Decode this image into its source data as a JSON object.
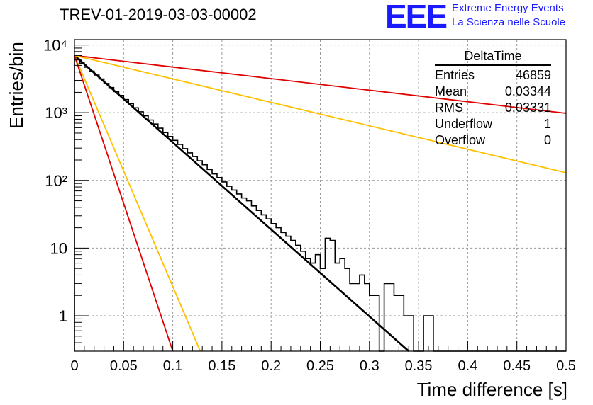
{
  "title": "TREV-01-2019-03-03-00002",
  "logo": {
    "mark": "EEE",
    "line1": "Extreme Energy Events",
    "line2": "La Scienza nelle Scuole",
    "color": "#1a1aff"
  },
  "stats": {
    "name": "DeltaTime",
    "rows": [
      {
        "label": "Entries",
        "value": "46859"
      },
      {
        "label": "Mean",
        "value": "0.03344"
      },
      {
        "label": "RMS",
        "value": "0.03331"
      },
      {
        "label": "Underflow",
        "value": "1"
      },
      {
        "label": "Overflow",
        "value": "0"
      }
    ]
  },
  "chart_data": {
    "type": "line",
    "title": "TREV-01-2019-03-03-00002",
    "xlabel": "Time difference [s]",
    "ylabel": "Entries/bin",
    "xlim": [
      0,
      0.5
    ],
    "ylim": [
      0.3,
      12000
    ],
    "yscale": "log",
    "grid": true,
    "x_ticks": [
      "0",
      "0.05",
      "0.1",
      "0.15",
      "0.2",
      "0.25",
      "0.3",
      "0.35",
      "0.4",
      "0.45",
      "0.5"
    ],
    "y_ticks": [
      {
        "value": 1,
        "label": "1"
      },
      {
        "value": 10,
        "label": "10"
      },
      {
        "value": 100,
        "label": "10²"
      },
      {
        "value": 1000,
        "label": "10³"
      },
      {
        "value": 10000,
        "label": "10⁴"
      }
    ],
    "histogram": {
      "bin_width": 0.005,
      "color": "#000000",
      "values": [
        6200,
        5400,
        4700,
        4100,
        3600,
        3150,
        2700,
        2350,
        2050,
        1800,
        1560,
        1360,
        1180,
        1030,
        900,
        780,
        680,
        590,
        510,
        445,
        390,
        340,
        295,
        255,
        225,
        195,
        170,
        145,
        125,
        110,
        95,
        82,
        72,
        63,
        55,
        50,
        42,
        36,
        31,
        27,
        23,
        20,
        17,
        15,
        13,
        11,
        9,
        7,
        6,
        8,
        5,
        14,
        13,
        6,
        7,
        5,
        3,
        3,
        4,
        3,
        2,
        2,
        0,
        3,
        3,
        2,
        2,
        1,
        1,
        0,
        0,
        1,
        1,
        0,
        0,
        0,
        0,
        0,
        0,
        0,
        0,
        0,
        0,
        0,
        0,
        0,
        0,
        0,
        0,
        0,
        0,
        0,
        0,
        0,
        0,
        0,
        0,
        0,
        0,
        0
      ]
    },
    "series": [
      {
        "color": "#000000",
        "x": [
          0,
          0.34
        ],
        "y": [
          7000,
          0.3
        ]
      },
      {
        "color": "#e00000",
        "x": [
          0,
          0.5
        ],
        "y": [
          7000,
          980
        ]
      },
      {
        "color": "#ffc000",
        "x": [
          0,
          0.5
        ],
        "y": [
          7000,
          130
        ]
      },
      {
        "color": "#ffc000",
        "x": [
          0,
          0.128
        ],
        "y": [
          7000,
          0.3
        ]
      },
      {
        "color": "#e00000",
        "x": [
          0,
          0.1
        ],
        "y": [
          7000,
          0.3
        ]
      }
    ]
  }
}
